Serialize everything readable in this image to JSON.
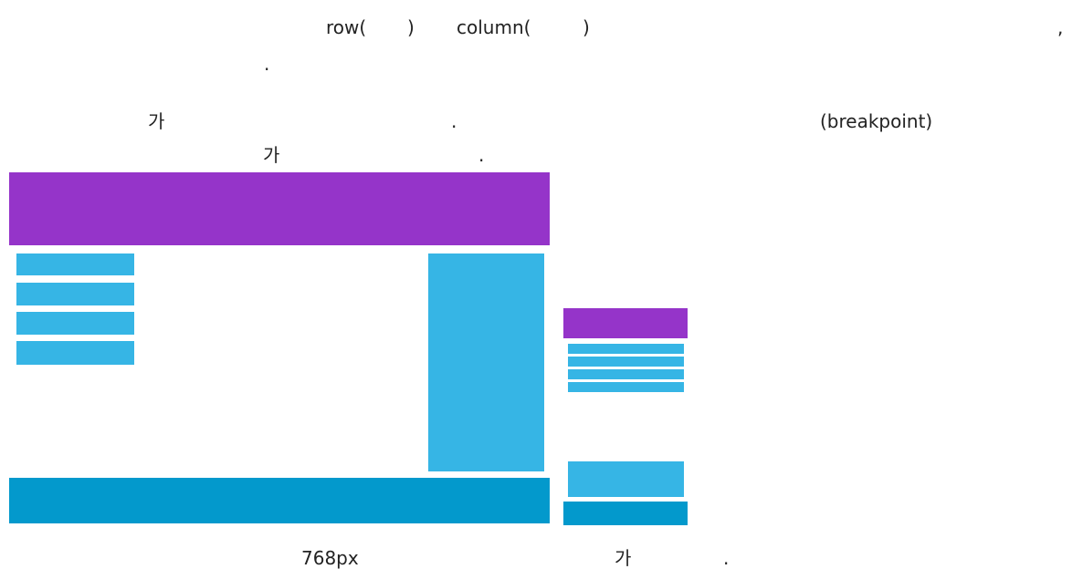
{
  "paragraph": {
    "lines": [
      [
        "row(",
        ")",
        "column(",
        ")",
        ","
      ],
      [
        "."
      ],
      [
        "가",
        ".",
        "(breakpoint)"
      ],
      [
        "가",
        "."
      ]
    ]
  },
  "caption": [
    "768px",
    "가",
    "."
  ]
}
